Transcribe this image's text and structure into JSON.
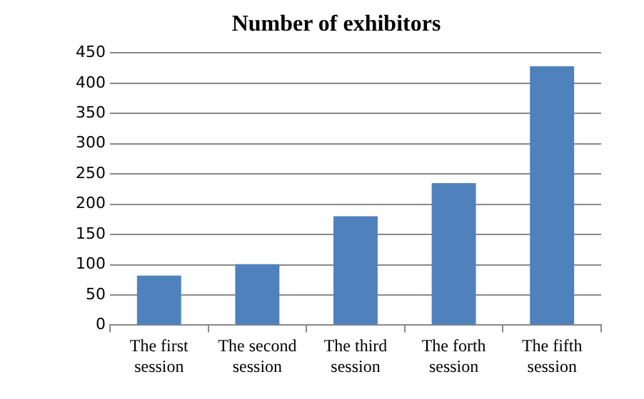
{
  "chart_data": {
    "type": "bar",
    "title": "Number of exhibitors",
    "categories": [
      "The first session",
      "The second session",
      "The third session",
      "The forth session",
      "The fifth session"
    ],
    "values": [
      82,
      101,
      180,
      235,
      428
    ],
    "color": "#4f81bd",
    "ylim": [
      0,
      450
    ],
    "yticks": [
      0,
      50,
      100,
      150,
      200,
      250,
      300,
      350,
      400,
      450
    ],
    "grid": "y",
    "legend": false
  }
}
